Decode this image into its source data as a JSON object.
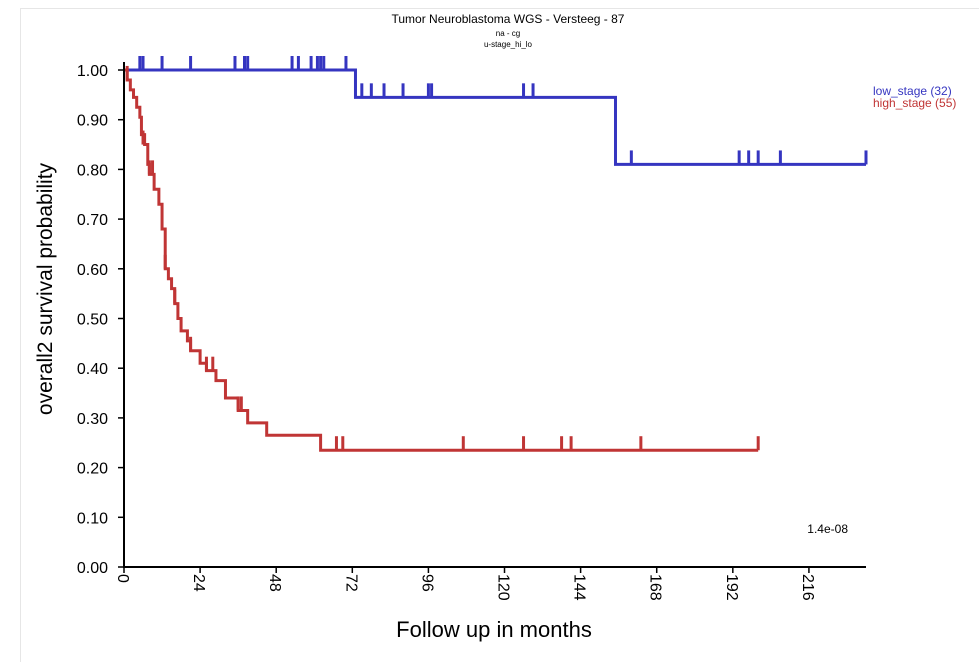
{
  "chart_data": {
    "type": "line",
    "title": "Tumor Neuroblastoma WGS - Versteeg - 87",
    "subtitle1": "na - cg",
    "subtitle2": "u-stage_hi_lo",
    "xlabel": "Follow up in months",
    "ylabel": "overall2 survival probability",
    "xlim": [
      0,
      234
    ],
    "ylim": [
      0,
      1.0
    ],
    "xticks": [
      "0",
      "24",
      "48",
      "72",
      "96",
      "120",
      "144",
      "168",
      "192",
      "216"
    ],
    "yticks": [
      "0.00",
      "0.10",
      "0.20",
      "0.30",
      "0.40",
      "0.50",
      "0.60",
      "0.70",
      "0.80",
      "0.90",
      "1.00"
    ],
    "pvalue": "1.4e-08",
    "legend_position": "top-right",
    "series": [
      {
        "name": "low_stage (32)",
        "color": "#3535c0",
        "steps": [
          [
            0,
            1.0
          ],
          [
            73,
            0.945
          ],
          [
            155,
            0.81
          ],
          [
            234,
            0.81
          ]
        ],
        "censors": [
          [
            5,
            1.0
          ],
          [
            6,
            1.0
          ],
          [
            12,
            1.0
          ],
          [
            21,
            1.0
          ],
          [
            35,
            1.0
          ],
          [
            38,
            1.0
          ],
          [
            39,
            1.0
          ],
          [
            53,
            1.0
          ],
          [
            55,
            1.0
          ],
          [
            59,
            1.0
          ],
          [
            61,
            1.0
          ],
          [
            62,
            1.0
          ],
          [
            63,
            1.0
          ],
          [
            70,
            1.0
          ],
          [
            75,
            0.945
          ],
          [
            78,
            0.945
          ],
          [
            82,
            0.945
          ],
          [
            88,
            0.945
          ],
          [
            96,
            0.945
          ],
          [
            97,
            0.945
          ],
          [
            126,
            0.945
          ],
          [
            129,
            0.945
          ],
          [
            160,
            0.81
          ],
          [
            194,
            0.81
          ],
          [
            197,
            0.81
          ],
          [
            200,
            0.81
          ],
          [
            207,
            0.81
          ],
          [
            234,
            0.81
          ]
        ]
      },
      {
        "name": "high_stage (55)",
        "color": "#c03535",
        "steps": [
          [
            0,
            1.0
          ],
          [
            1,
            0.98
          ],
          [
            2,
            0.96
          ],
          [
            3,
            0.945
          ],
          [
            4,
            0.925
          ],
          [
            5,
            0.905
          ],
          [
            5.5,
            0.87
          ],
          [
            6.5,
            0.85
          ],
          [
            7.5,
            0.81
          ],
          [
            8,
            0.79
          ],
          [
            9.5,
            0.76
          ],
          [
            11,
            0.73
          ],
          [
            12,
            0.68
          ],
          [
            13,
            0.6
          ],
          [
            14,
            0.58
          ],
          [
            15,
            0.56
          ],
          [
            16,
            0.53
          ],
          [
            17,
            0.5
          ],
          [
            18,
            0.475
          ],
          [
            20,
            0.455
          ],
          [
            21,
            0.435
          ],
          [
            24,
            0.41
          ],
          [
            26,
            0.395
          ],
          [
            29,
            0.375
          ],
          [
            32,
            0.34
          ],
          [
            36,
            0.315
          ],
          [
            39,
            0.29
          ],
          [
            45,
            0.265
          ],
          [
            62,
            0.235
          ],
          [
            200,
            0.235
          ]
        ],
        "censors": [
          [
            1,
            0.98
          ],
          [
            6,
            0.85
          ],
          [
            8,
            0.79
          ],
          [
            9,
            0.79
          ],
          [
            13,
            0.6
          ],
          [
            16,
            0.53
          ],
          [
            21,
            0.435
          ],
          [
            26,
            0.395
          ],
          [
            28,
            0.395
          ],
          [
            36,
            0.315
          ],
          [
            37,
            0.315
          ],
          [
            67,
            0.235
          ],
          [
            69,
            0.235
          ],
          [
            107,
            0.235
          ],
          [
            126,
            0.235
          ],
          [
            138,
            0.235
          ],
          [
            141,
            0.235
          ],
          [
            163,
            0.235
          ],
          [
            200,
            0.235
          ]
        ]
      }
    ]
  }
}
